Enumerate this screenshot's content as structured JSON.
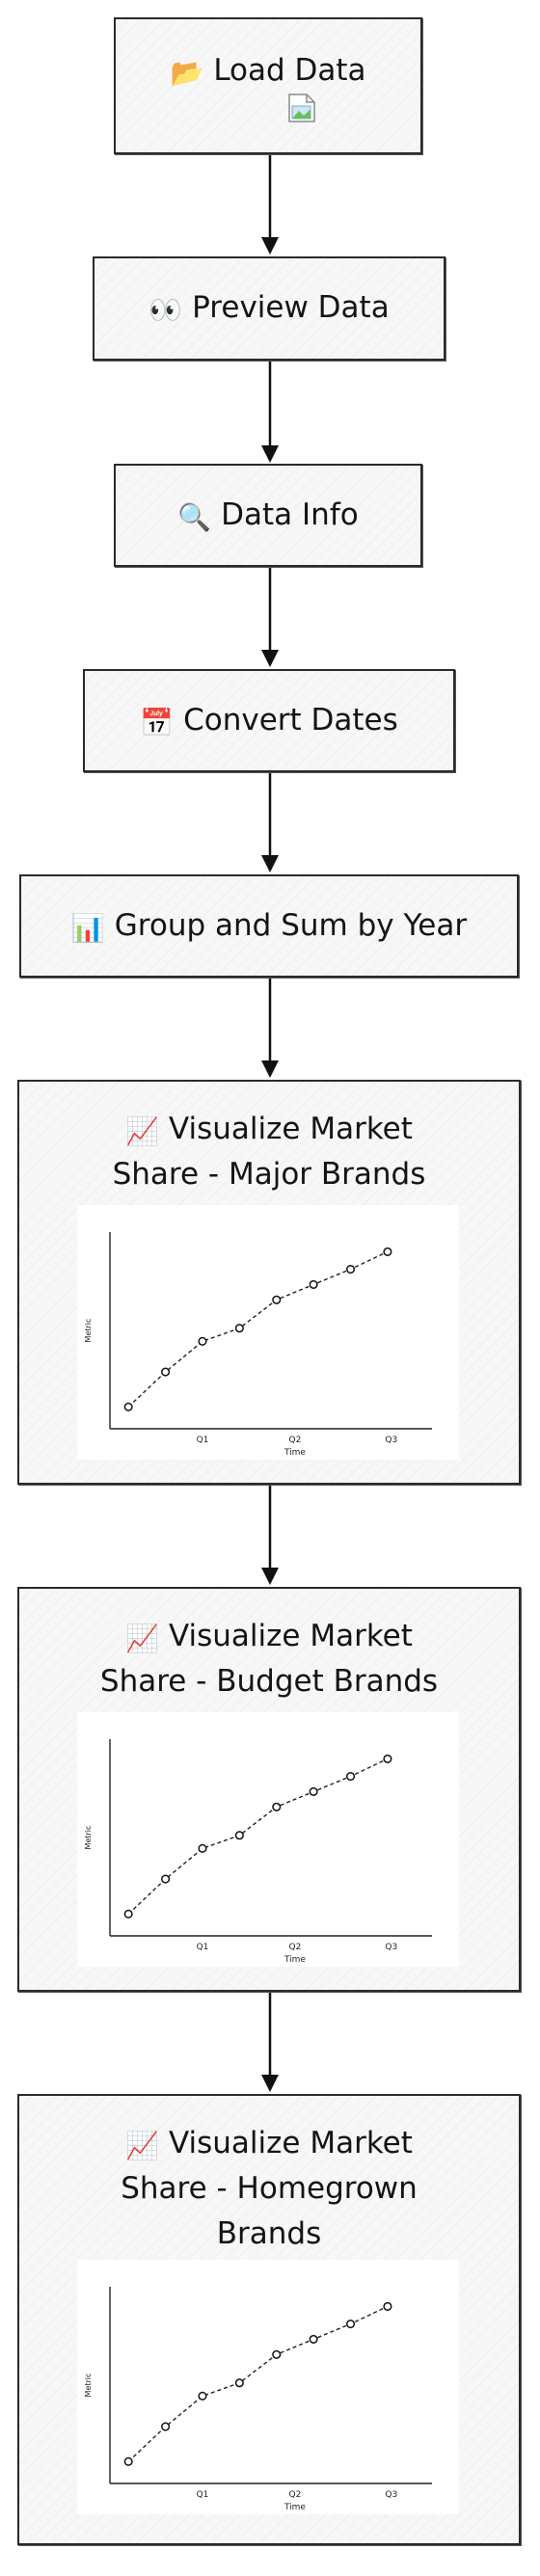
{
  "steps": [
    {
      "icon": "folder-icon",
      "glyph": "📂",
      "label": "Load Data"
    },
    {
      "icon": "eyes-icon",
      "glyph": "👀",
      "label": "Preview Data"
    },
    {
      "icon": "magnifier-icon",
      "glyph": "🔍",
      "label": "Data Info"
    },
    {
      "icon": "calendar-icon",
      "glyph": "📅",
      "label": "Convert Dates"
    },
    {
      "icon": "bar-chart-icon",
      "glyph": "📊",
      "label": "Group and Sum by Year"
    },
    {
      "icon": "line-chart-icon",
      "glyph": "📈",
      "label_lines": [
        "Visualize Market",
        "Share - Major Brands"
      ]
    },
    {
      "icon": "line-chart-icon",
      "glyph": "📈",
      "label_lines": [
        "Visualize Market",
        "Share - Budget Brands"
      ]
    },
    {
      "icon": "line-chart-icon",
      "glyph": "📈",
      "label_lines": [
        "Visualize Market",
        "Share - Homegrown",
        "Brands"
      ]
    }
  ],
  "mini_chart": {
    "ylabel": "Metric",
    "xlabel": "Time",
    "ticks": [
      "Q1",
      "Q2",
      "Q3"
    ]
  },
  "chart_data": {
    "type": "line",
    "x": [
      1,
      2,
      3,
      4,
      5,
      6,
      7,
      8
    ],
    "values": [
      1.0,
      2.6,
      4.0,
      4.6,
      5.9,
      6.6,
      7.3,
      8.1
    ],
    "tick_labels": [
      "Q1",
      "Q2",
      "Q3"
    ],
    "xlabel": "Time",
    "ylabel": "Metric",
    "ylim": [
      0,
      9
    ],
    "line_style": "dashed",
    "markers": "open-circle"
  },
  "colors": {
    "node_border": "#2a2a2a",
    "node_fill": "#f7f7f7",
    "arrow": "#111111",
    "chart_line": "#222222"
  }
}
